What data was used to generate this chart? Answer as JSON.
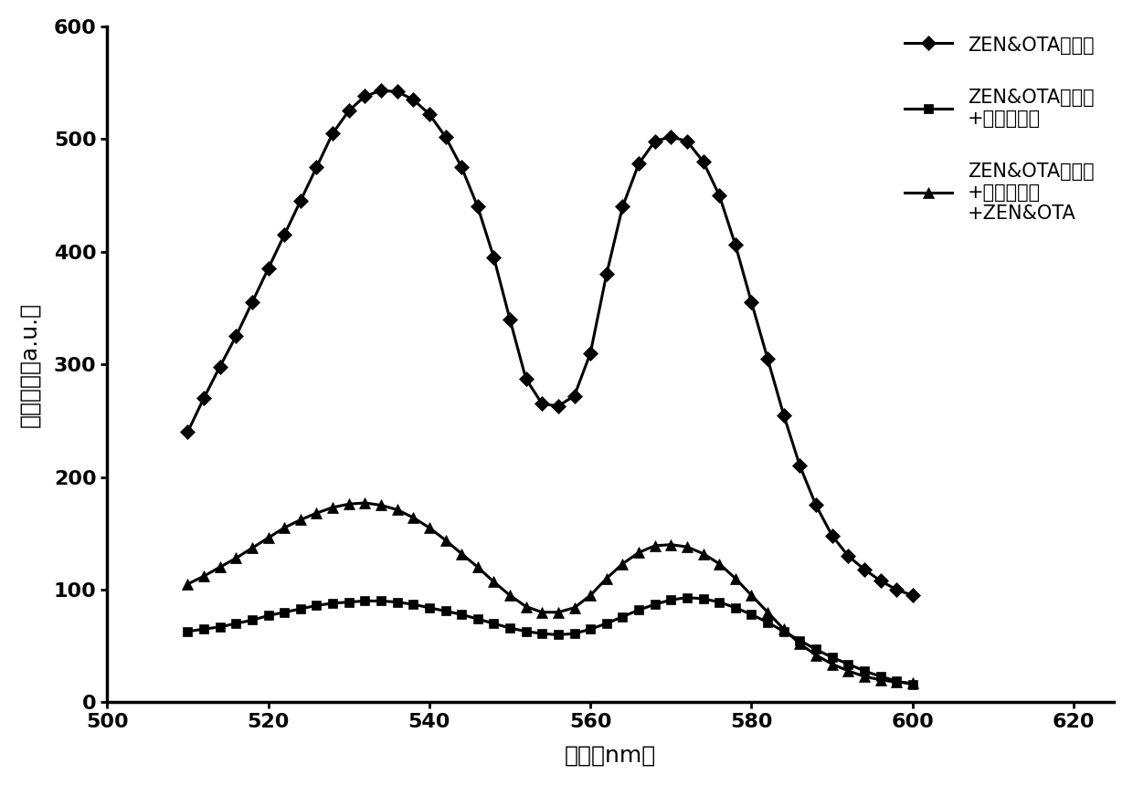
{
  "title": "",
  "xlabel": "波长（nm）",
  "ylabel": "荧光强度（a.u.）",
  "xlim": [
    500,
    625
  ],
  "ylim": [
    0,
    600
  ],
  "xticks": [
    500,
    520,
    540,
    560,
    580,
    600,
    620
  ],
  "yticks": [
    0,
    100,
    200,
    300,
    400,
    500,
    600
  ],
  "legend_labels": [
    "ZEN&OTA适配体",
    "ZEN&OTA适配体\n+氧化石墨烯",
    "ZEN&OTA适配体\n+氧化石墨烯\n+ZEN&OTA"
  ],
  "markers": [
    "D",
    "s",
    "^"
  ],
  "curve1_x": [
    510,
    512,
    514,
    516,
    518,
    520,
    522,
    524,
    526,
    528,
    530,
    532,
    534,
    536,
    538,
    540,
    542,
    544,
    546,
    548,
    550,
    552,
    554,
    556,
    558,
    560,
    562,
    564,
    566,
    568,
    570,
    572,
    574,
    576,
    578,
    580,
    582,
    584,
    586,
    588,
    590,
    592,
    594,
    596,
    598,
    600
  ],
  "curve1_y": [
    240,
    270,
    298,
    325,
    355,
    385,
    415,
    445,
    475,
    505,
    525,
    538,
    543,
    542,
    535,
    522,
    502,
    475,
    440,
    395,
    340,
    287,
    265,
    263,
    272,
    310,
    380,
    440,
    478,
    498,
    502,
    498,
    480,
    450,
    406,
    355,
    305,
    255,
    210,
    175,
    148,
    130,
    118,
    108,
    100,
    95
  ],
  "curve2_x": [
    510,
    512,
    514,
    516,
    518,
    520,
    522,
    524,
    526,
    528,
    530,
    532,
    534,
    536,
    538,
    540,
    542,
    544,
    546,
    548,
    550,
    552,
    554,
    556,
    558,
    560,
    562,
    564,
    566,
    568,
    570,
    572,
    574,
    576,
    578,
    580,
    582,
    584,
    586,
    588,
    590,
    592,
    594,
    596,
    598,
    600
  ],
  "curve2_y": [
    63,
    65,
    67,
    70,
    73,
    77,
    80,
    83,
    86,
    88,
    89,
    90,
    90,
    89,
    87,
    84,
    81,
    78,
    74,
    70,
    66,
    63,
    61,
    60,
    61,
    65,
    70,
    76,
    82,
    87,
    91,
    93,
    92,
    89,
    84,
    78,
    71,
    63,
    55,
    47,
    40,
    34,
    28,
    23,
    19,
    16
  ],
  "curve3_x": [
    510,
    512,
    514,
    516,
    518,
    520,
    522,
    524,
    526,
    528,
    530,
    532,
    534,
    536,
    538,
    540,
    542,
    544,
    546,
    548,
    550,
    552,
    554,
    556,
    558,
    560,
    562,
    564,
    566,
    568,
    570,
    572,
    574,
    576,
    578,
    580,
    582,
    584,
    586,
    588,
    590,
    592,
    594,
    596,
    598,
    600
  ],
  "curve3_y": [
    105,
    112,
    120,
    128,
    137,
    146,
    155,
    162,
    168,
    173,
    176,
    177,
    175,
    171,
    164,
    155,
    144,
    132,
    120,
    107,
    95,
    85,
    80,
    80,
    84,
    95,
    110,
    123,
    133,
    139,
    140,
    138,
    132,
    123,
    110,
    95,
    80,
    65,
    52,
    42,
    34,
    28,
    23,
    20,
    18,
    17
  ]
}
